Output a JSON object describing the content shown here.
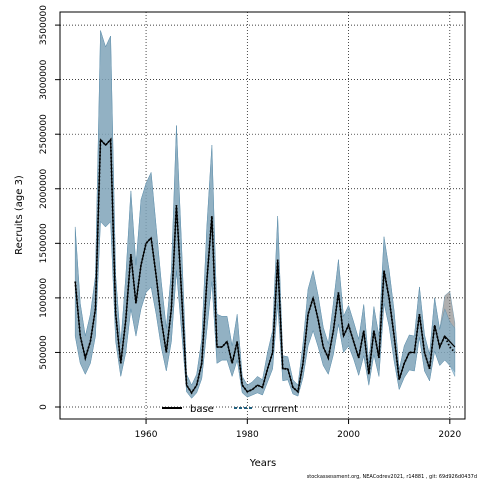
{
  "chart_data": {
    "type": "line",
    "title": "",
    "xlabel": "Years",
    "ylabel": "Recruits (age 3)",
    "xlim": [
      1943,
      2023
    ],
    "ylim": [
      -110000,
      3620000
    ],
    "x_ticks": [
      1960,
      1980,
      2000,
      2020
    ],
    "y_ticks": [
      0,
      500000,
      1000000,
      1500000,
      2000000,
      2500000,
      3000000,
      3500000
    ],
    "grid": true,
    "legend_position": "bottom-center",
    "colors": {
      "base": "#000000",
      "current": "#1f5f7f",
      "base_band": "#7a7a7a",
      "current_band": "#7fb2d0"
    },
    "x": [
      1946,
      1947,
      1948,
      1949,
      1950,
      1951,
      1952,
      1953,
      1954,
      1955,
      1956,
      1957,
      1958,
      1959,
      1960,
      1961,
      1962,
      1963,
      1964,
      1965,
      1966,
      1967,
      1968,
      1969,
      1970,
      1971,
      1972,
      1973,
      1974,
      1975,
      1976,
      1977,
      1978,
      1979,
      1980,
      1981,
      1982,
      1983,
      1984,
      1985,
      1986,
      1987,
      1988,
      1989,
      1990,
      1991,
      1992,
      1993,
      1994,
      1995,
      1996,
      1997,
      1998,
      1999,
      2000,
      2001,
      2002,
      2003,
      2004,
      2005,
      2006,
      2007,
      2008,
      2009,
      2010,
      2011,
      2012,
      2013,
      2014,
      2015,
      2016,
      2017,
      2018,
      2019,
      2020,
      2021
    ],
    "series": [
      {
        "name": "base",
        "style": "solid",
        "values": [
          1150000,
          650000,
          450000,
          600000,
          900000,
          2450000,
          2400000,
          2450000,
          850000,
          400000,
          800000,
          1400000,
          950000,
          1300000,
          1500000,
          1550000,
          1200000,
          800000,
          500000,
          900000,
          1850000,
          1050000,
          200000,
          130000,
          200000,
          400000,
          1150000,
          1750000,
          550000,
          550000,
          600000,
          400000,
          600000,
          200000,
          140000,
          160000,
          200000,
          180000,
          350000,
          500000,
          1350000,
          350000,
          350000,
          180000,
          140000,
          400000,
          850000,
          1000000,
          800000,
          550000,
          450000,
          700000,
          1050000,
          650000,
          750000,
          600000,
          450000,
          700000,
          300000,
          700000,
          450000,
          1250000,
          1000000,
          650000,
          250000,
          400000,
          500000,
          500000,
          850000,
          500000,
          350000,
          750000,
          550000,
          650000,
          600000,
          550000
        ]
      },
      {
        "name": "current",
        "style": "dotted",
        "values": [
          1150000,
          650000,
          450000,
          600000,
          900000,
          2450000,
          2400000,
          2450000,
          850000,
          400000,
          800000,
          1400000,
          950000,
          1300000,
          1500000,
          1550000,
          1200000,
          800000,
          500000,
          900000,
          1850000,
          1050000,
          200000,
          130000,
          200000,
          400000,
          1150000,
          1750000,
          550000,
          550000,
          600000,
          400000,
          600000,
          200000,
          140000,
          160000,
          200000,
          180000,
          350000,
          500000,
          1350000,
          350000,
          350000,
          180000,
          140000,
          400000,
          850000,
          1000000,
          800000,
          550000,
          450000,
          700000,
          1050000,
          650000,
          750000,
          600000,
          450000,
          700000,
          300000,
          700000,
          450000,
          1250000,
          1000000,
          650000,
          250000,
          400000,
          500000,
          500000,
          850000,
          500000,
          350000,
          750000,
          550000,
          650000,
          550000,
          500000
        ]
      }
    ],
    "bands": [
      {
        "name": "base interval",
        "lower": [
          650000,
          400000,
          300000,
          400000,
          650000,
          1700000,
          1650000,
          1700000,
          600000,
          280000,
          500000,
          900000,
          650000,
          900000,
          1050000,
          1100000,
          850000,
          550000,
          330000,
          600000,
          1250000,
          700000,
          140000,
          80000,
          130000,
          260000,
          700000,
          1150000,
          400000,
          430000,
          430000,
          280000,
          430000,
          130000,
          90000,
          110000,
          130000,
          110000,
          230000,
          350000,
          950000,
          240000,
          250000,
          120000,
          100000,
          270000,
          560000,
          700000,
          550000,
          380000,
          300000,
          480000,
          760000,
          500000,
          560000,
          440000,
          290000,
          470000,
          200000,
          480000,
          280000,
          950000,
          740000,
          420000,
          160000,
          270000,
          340000,
          330000,
          640000,
          330000,
          240000,
          510000,
          380000,
          430000,
          380000,
          320000
        ],
        "upper": [
          1650000,
          950000,
          650000,
          850000,
          1200000,
          3450000,
          3300000,
          3400000,
          1200000,
          580000,
          1200000,
          1980000,
          1300000,
          1900000,
          2050000,
          2150000,
          1650000,
          1150000,
          720000,
          1250000,
          2580000,
          1500000,
          300000,
          200000,
          300000,
          620000,
          1650000,
          2400000,
          850000,
          830000,
          830000,
          560000,
          850000,
          280000,
          200000,
          230000,
          280000,
          250000,
          500000,
          700000,
          1750000,
          470000,
          460000,
          250000,
          200000,
          580000,
          1080000,
          1250000,
          1020000,
          730000,
          580000,
          950000,
          1350000,
          830000,
          930000,
          780000,
          620000,
          940000,
          400000,
          920000,
          650000,
          1560000,
          1260000,
          880000,
          340000,
          560000,
          660000,
          650000,
          1100000,
          660000,
          480000,
          1000000,
          710000,
          1020000,
          1060000,
          770000
        ]
      },
      {
        "name": "current interval",
        "lower": [
          650000,
          400000,
          300000,
          400000,
          650000,
          1700000,
          1650000,
          1700000,
          600000,
          280000,
          500000,
          900000,
          650000,
          900000,
          1050000,
          1100000,
          850000,
          550000,
          330000,
          600000,
          1250000,
          700000,
          140000,
          80000,
          130000,
          260000,
          700000,
          1150000,
          400000,
          430000,
          430000,
          280000,
          430000,
          130000,
          90000,
          110000,
          130000,
          110000,
          230000,
          350000,
          950000,
          240000,
          250000,
          120000,
          100000,
          270000,
          560000,
          700000,
          550000,
          380000,
          300000,
          480000,
          760000,
          500000,
          560000,
          440000,
          290000,
          470000,
          200000,
          480000,
          280000,
          950000,
          740000,
          420000,
          160000,
          270000,
          340000,
          330000,
          640000,
          330000,
          240000,
          510000,
          380000,
          430000,
          380000,
          280000
        ],
        "upper": [
          1650000,
          950000,
          650000,
          850000,
          1200000,
          3450000,
          3300000,
          3400000,
          1200000,
          580000,
          1200000,
          1980000,
          1300000,
          1900000,
          2050000,
          2150000,
          1650000,
          1150000,
          720000,
          1250000,
          2580000,
          1500000,
          300000,
          200000,
          300000,
          620000,
          1650000,
          2400000,
          850000,
          830000,
          830000,
          560000,
          850000,
          280000,
          200000,
          230000,
          280000,
          250000,
          500000,
          700000,
          1750000,
          470000,
          460000,
          250000,
          200000,
          580000,
          1080000,
          1250000,
          1020000,
          730000,
          580000,
          950000,
          1350000,
          830000,
          930000,
          780000,
          620000,
          940000,
          400000,
          920000,
          650000,
          1560000,
          1260000,
          880000,
          340000,
          560000,
          660000,
          650000,
          1100000,
          660000,
          480000,
          1000000,
          710000,
          900000,
          780000,
          720000
        ]
      }
    ]
  },
  "footer": {
    "credit": "stockassessment.org, NEACodrev2021, r14881 , git: 69d926d0437d"
  }
}
